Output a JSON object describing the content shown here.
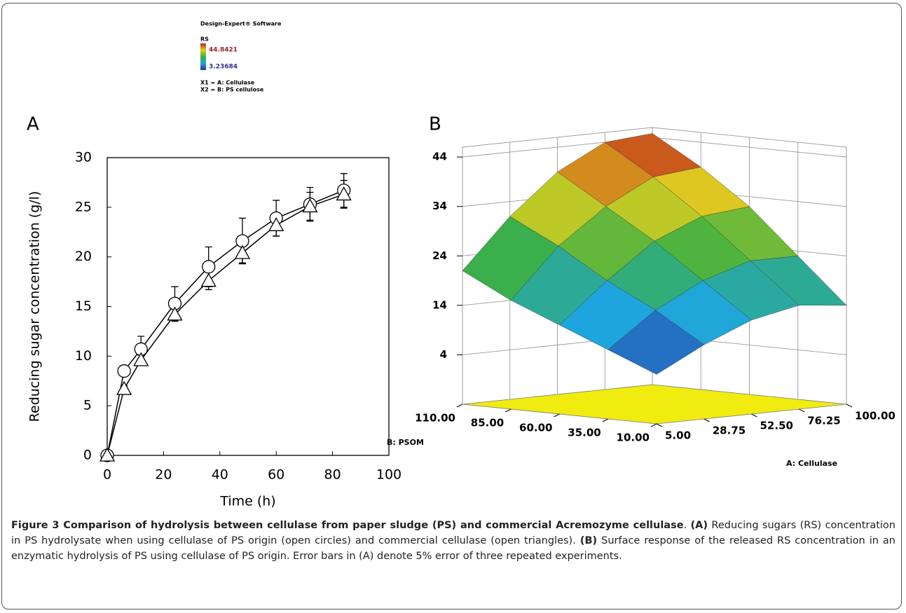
{
  "chart_data": [
    {
      "type": "line",
      "panel_label": "A",
      "x": [
        0,
        6,
        12,
        24,
        36,
        48,
        60,
        72,
        84
      ],
      "series": [
        {
          "marker": "circle",
          "color": "#000000",
          "values": [
            0,
            8.5,
            10.7,
            15.3,
            19,
            21.6,
            23.9,
            25.3,
            26.7
          ],
          "errors": [
            0,
            0.3,
            1.3,
            1.7,
            2,
            2.3,
            1.8,
            1.7,
            1.7
          ]
        },
        {
          "marker": "triangle",
          "color": "#000000",
          "values": [
            0,
            6.7,
            9.6,
            14.2,
            17.6,
            20.4,
            23.2,
            25.1,
            26.3
          ],
          "errors": [
            0,
            0.3,
            0.5,
            0.7,
            0.9,
            1,
            1.1,
            1.4,
            1.4
          ]
        }
      ],
      "xlabel": "Time (h)",
      "ylabel": "Reducing sugar concentration (g/l)",
      "xlim": [
        0,
        100
      ],
      "xticks": [
        0,
        20,
        40,
        60,
        80,
        100
      ],
      "ylim": [
        0,
        30
      ],
      "yticks": [
        0,
        5,
        10,
        15,
        20,
        25,
        30
      ]
    },
    {
      "type": "surface",
      "panel_label": "B",
      "legend": {
        "software": "Design-Expert® Software",
        "name": "RS",
        "high": 44.8421,
        "low": 3.23684,
        "x1": "X1 = A: Cellulase",
        "x2": "X2 = B: PS cellulose"
      },
      "colormap": [
        "#2b2f9c",
        "#1ea5e0",
        "#3cb043",
        "#e0d020",
        "#c0201a"
      ],
      "xlabel": "A: Cellulase",
      "ylabel": "B: PSOM",
      "xlim": [
        5,
        100
      ],
      "xticks": [
        {
          "value": 5,
          "label": "5.00"
        },
        {
          "value": 28.75,
          "label": "28.75"
        },
        {
          "value": 52.5,
          "label": "52.50"
        },
        {
          "value": 76.25,
          "label": "76.25"
        },
        {
          "value": 100,
          "label": "100.00"
        }
      ],
      "ylim": [
        10,
        110
      ],
      "yticks": [
        {
          "value": 10,
          "label": "10.00"
        },
        {
          "value": 35,
          "label": "35.00"
        },
        {
          "value": 60,
          "label": "60.00"
        },
        {
          "value": 85,
          "label": "85.00"
        },
        {
          "value": 110,
          "label": "110.00"
        }
      ],
      "zlim": [
        -6,
        46
      ],
      "zticks": [
        4,
        14,
        24,
        34,
        44
      ],
      "grid_x": [
        5,
        28.75,
        52.5,
        76.25,
        100
      ],
      "grid_y": [
        10,
        35,
        60,
        85,
        110
      ],
      "z": [
        [
          4,
          9,
          13,
          15,
          14
        ],
        [
          8,
          15,
          20,
          23,
          23
        ],
        [
          12,
          20,
          27,
          31,
          32
        ],
        [
          16,
          26,
          33,
          38,
          39
        ],
        [
          21,
          31,
          39,
          44,
          44.8
        ]
      ]
    }
  ],
  "caption": [
    {
      "text": "Figure 3 Comparison of hydrolysis between cellulase from paper sludge (PS) and commercial Acremozyme cellulase",
      "bold": true
    },
    {
      "text": ". ",
      "bold": false
    },
    {
      "text": "(A)",
      "bold": true
    },
    {
      "text": " Reducing sugars (RS) concentration in PS hydrolysate when using cellulase of PS origin (open circles) and commercial cellulase (open triangles). ",
      "bold": false
    },
    {
      "text": "(B)",
      "bold": true
    },
    {
      "text": " Surface response of the released RS concentration in an enzymatic hydrolysis of PS using cellulase of PS origin. Error bars in (A) denote 5% error of three repeated experiments.",
      "bold": false
    }
  ]
}
